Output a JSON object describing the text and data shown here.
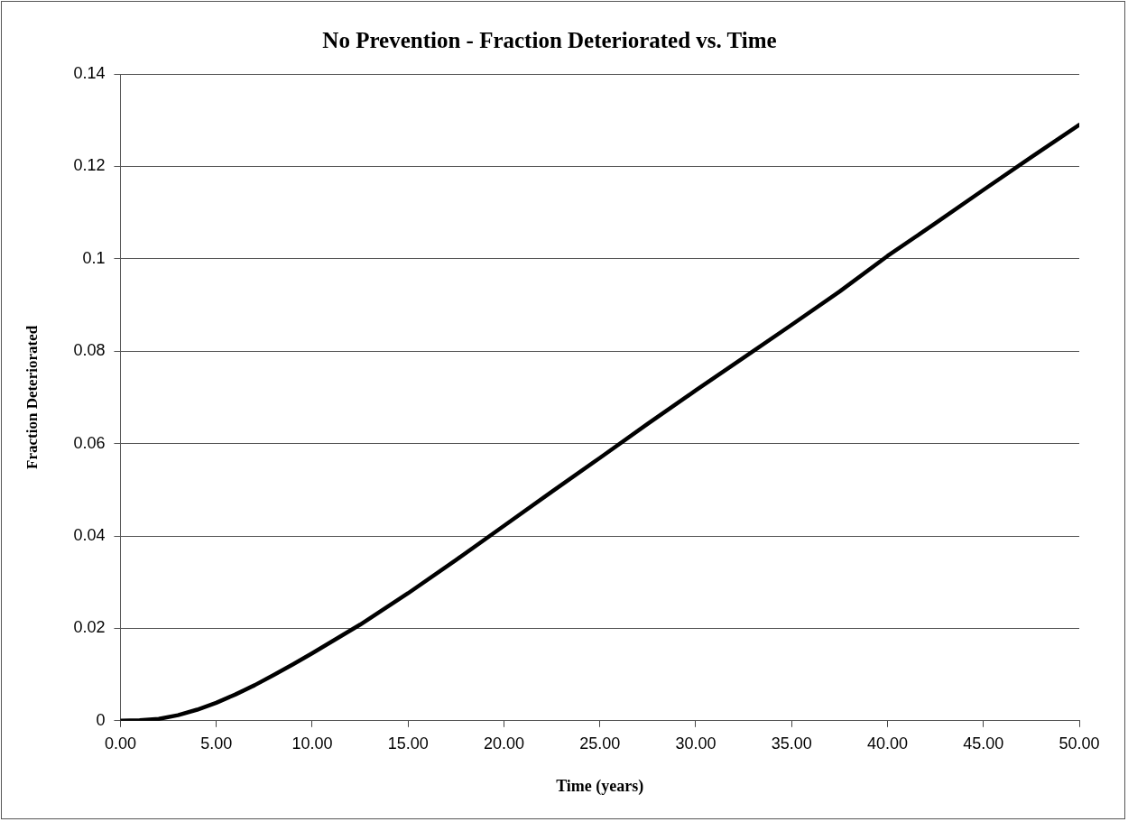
{
  "chart_data": {
    "type": "line",
    "title": "No Prevention - Fraction Deteriorated vs. Time",
    "xlabel": "Time (years)",
    "ylabel": "Fraction Deteriorated",
    "xlim": [
      0,
      50
    ],
    "xticks": [
      {
        "value": 0,
        "label": "0.00"
      },
      {
        "value": 5,
        "label": "5.00"
      },
      {
        "value": 10,
        "label": "10.00"
      },
      {
        "value": 15,
        "label": "15.00"
      },
      {
        "value": 20,
        "label": "20.00"
      },
      {
        "value": 25,
        "label": "25.00"
      },
      {
        "value": 30,
        "label": "30.00"
      },
      {
        "value": 35,
        "label": "35.00"
      },
      {
        "value": 40,
        "label": "40.00"
      },
      {
        "value": 45,
        "label": "45.00"
      },
      {
        "value": 50,
        "label": "50.00"
      }
    ],
    "ylim": [
      0,
      0.14
    ],
    "yticks": [
      0,
      0.02,
      0.04,
      0.06,
      0.08,
      0.1,
      0.12,
      0.14
    ],
    "grid": "y",
    "legend": false,
    "series": [
      {
        "color": "#000000",
        "x": [
          0,
          1,
          2,
          3,
          4,
          5,
          6,
          7,
          8,
          9,
          10,
          12.5,
          15,
          17.5,
          20,
          22.5,
          25,
          27.5,
          30,
          32.5,
          35,
          37.5,
          40,
          42.5,
          45,
          47.5,
          50
        ],
        "values": [
          0,
          0.0001,
          0.0004,
          0.0012,
          0.0024,
          0.0039,
          0.0057,
          0.0077,
          0.0099,
          0.0122,
          0.0146,
          0.0208,
          0.0276,
          0.0348,
          0.0422,
          0.0496,
          0.0569,
          0.0643,
          0.0715,
          0.0786,
          0.0857,
          0.0929,
          0.1006,
          0.1077,
          0.1149,
          0.122,
          0.129
        ]
      }
    ]
  }
}
